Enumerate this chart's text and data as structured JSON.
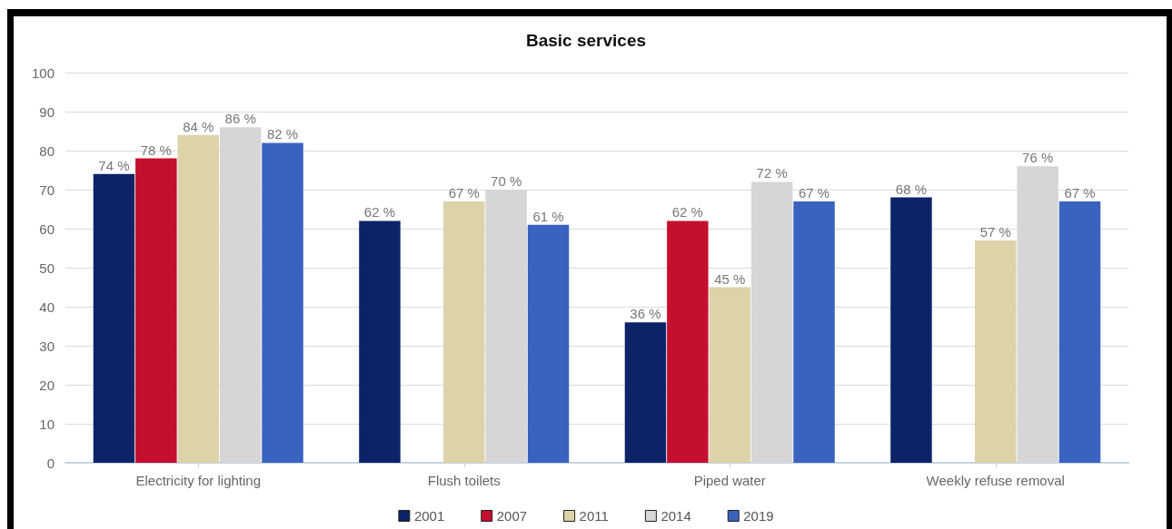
{
  "chart_data": {
    "type": "bar",
    "title": "Basic services",
    "categories": [
      "Electricity for lighting",
      "Flush toilets",
      "Piped water",
      "Weekly refuse removal"
    ],
    "series": [
      {
        "name": "2001",
        "color": "#0b2468",
        "values": [
          74,
          62,
          36,
          68
        ],
        "value_labels": [
          "74 %",
          "62 %",
          "36 %",
          "68 %"
        ]
      },
      {
        "name": "2007",
        "color": "#c40f2f",
        "values": [
          78,
          null,
          62,
          null
        ],
        "value_labels": [
          "78 %",
          null,
          "62 %",
          null
        ]
      },
      {
        "name": "2011",
        "color": "#ddd2a8",
        "values": [
          84,
          67,
          45,
          57
        ],
        "value_labels": [
          "84 %",
          "67 %",
          "45 %",
          "57 %"
        ]
      },
      {
        "name": "2014",
        "color": "#d6d6d6",
        "values": [
          86,
          70,
          72,
          76
        ],
        "value_labels": [
          "86 %",
          "70 %",
          "72 %",
          "76 %"
        ]
      },
      {
        "name": "2019",
        "color": "#3a62bf",
        "values": [
          82,
          61,
          67,
          67
        ],
        "value_labels": [
          "82 %",
          "61 %",
          "67 %",
          "67 %"
        ]
      }
    ],
    "ylim": [
      0,
      100
    ],
    "yticks": [
      0,
      10,
      20,
      30,
      40,
      50,
      60,
      70,
      80,
      90,
      100
    ],
    "grid": "y",
    "legend": "bottom"
  }
}
